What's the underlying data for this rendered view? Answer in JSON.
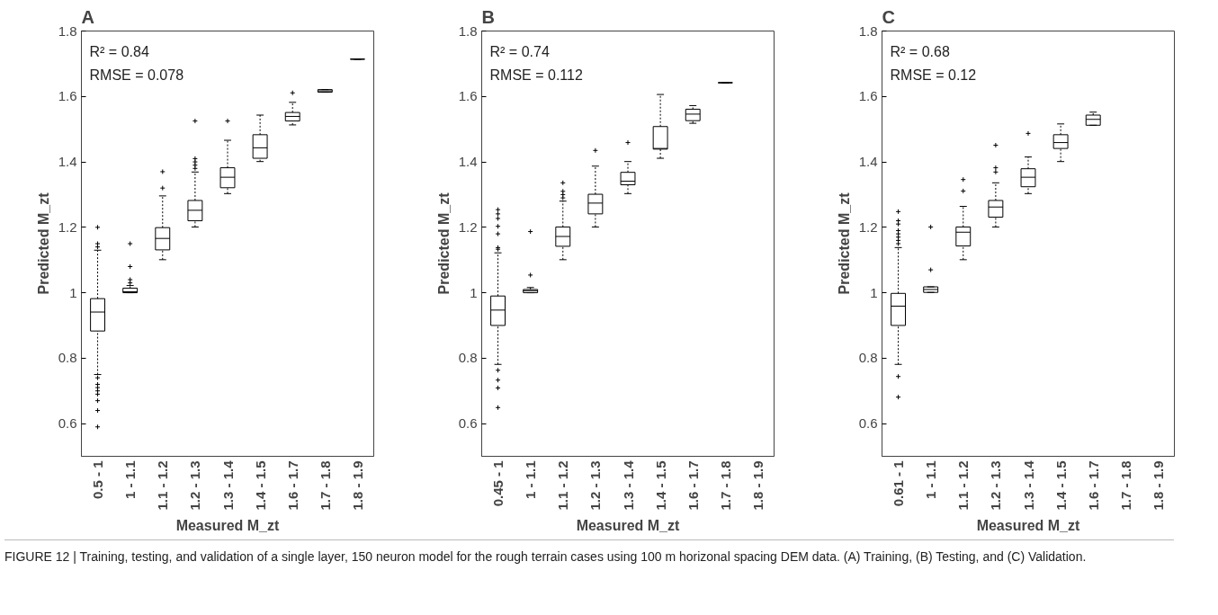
{
  "chart_data": [
    {
      "type": "box",
      "title": "A",
      "xlabel": "Measured M_zt",
      "ylabel": "Predicted M_zt",
      "ylim": [
        0.5,
        1.8
      ],
      "yticks": [
        0.6,
        0.8,
        1,
        1.2,
        1.4,
        1.6,
        1.8
      ],
      "categories": [
        "0.5 - 1",
        "1 - 1.1",
        "1.1 - 1.2",
        "1.2 - 1.3",
        "1.3 - 1.4",
        "1.4 - 1.5",
        "1.6 - 1.7",
        "1.7 - 1.8",
        "1.8 - 1.9"
      ],
      "boxes": [
        {
          "low": 0.75,
          "q1": 0.883,
          "median": 0.941,
          "q3": 0.982,
          "high": 1.13,
          "outliers": [
            0.59,
            0.64,
            0.67,
            0.69,
            0.7,
            0.71,
            0.72,
            0.74,
            1.14,
            1.15,
            1.2
          ]
        },
        {
          "low": 1.0,
          "q1": 1.0,
          "median": 1.003,
          "q3": 1.014,
          "high": 1.022,
          "outliers": [
            1.03,
            1.04,
            1.08,
            1.15
          ]
        },
        {
          "low": 1.101,
          "q1": 1.131,
          "median": 1.166,
          "q3": 1.199,
          "high": 1.296,
          "outliers": [
            1.32,
            1.37
          ]
        },
        {
          "low": 1.201,
          "q1": 1.22,
          "median": 1.252,
          "q3": 1.282,
          "high": 1.369,
          "outliers": [
            1.38,
            1.39,
            1.4,
            1.41,
            1.525
          ]
        },
        {
          "low": 1.303,
          "q1": 1.321,
          "median": 1.353,
          "q3": 1.382,
          "high": 1.466,
          "outliers": [
            1.525
          ]
        },
        {
          "low": 1.401,
          "q1": 1.411,
          "median": 1.443,
          "q3": 1.483,
          "high": 1.543
        },
        {
          "low": 1.513,
          "q1": 1.525,
          "median": 1.539,
          "q3": 1.551,
          "high": 1.582,
          "outliers": [
            1.611
          ]
        },
        {
          "low": 1.613,
          "q1": 1.613,
          "median": 1.617,
          "q3": 1.621,
          "high": 1.621
        },
        {
          "low": 1.714,
          "q1": 1.714,
          "median": 1.714,
          "q3": 1.714,
          "high": 1.714
        }
      ],
      "annotations": [
        "R² = 0.84",
        "RMSE = 0.078"
      ]
    },
    {
      "type": "box",
      "title": "B",
      "xlabel": "Measured M_zt",
      "ylabel": "Predicted M_zt",
      "ylim": [
        0.5,
        1.8
      ],
      "yticks": [
        0.6,
        0.8,
        1,
        1.2,
        1.4,
        1.6,
        1.8
      ],
      "categories": [
        "0.45 - 1",
        "1 - 1.1",
        "1.1 - 1.2",
        "1.2 - 1.3",
        "1.3 - 1.4",
        "1.4 - 1.5",
        "1.6 - 1.7",
        "1.7 - 1.8",
        "1.8 - 1.9"
      ],
      "boxes": [
        {
          "low": 0.781,
          "q1": 0.9,
          "median": 0.947,
          "q3": 0.99,
          "high": 1.122,
          "outliers": [
            0.649,
            0.709,
            0.733,
            0.763,
            1.133,
            1.138,
            1.18,
            1.203,
            1.227,
            1.241,
            1.254
          ]
        },
        {
          "low": 1.0,
          "q1": 1.0,
          "median": 1.006,
          "q3": 1.01,
          "high": 1.016,
          "outliers": [
            1.054,
            1.187
          ]
        },
        {
          "low": 1.101,
          "q1": 1.142,
          "median": 1.172,
          "q3": 1.201,
          "high": 1.28,
          "outliers": [
            1.29,
            1.3,
            1.31,
            1.336
          ]
        },
        {
          "low": 1.201,
          "q1": 1.241,
          "median": 1.274,
          "q3": 1.301,
          "high": 1.387,
          "outliers": [
            1.435
          ]
        },
        {
          "low": 1.303,
          "q1": 1.33,
          "median": 1.341,
          "q3": 1.368,
          "high": 1.401,
          "outliers": [
            1.459
          ]
        },
        {
          "low": 1.411,
          "q1": 1.439,
          "median": 1.441,
          "q3": 1.508,
          "high": 1.606
        },
        {
          "low": 1.518,
          "q1": 1.526,
          "median": 1.546,
          "q3": 1.561,
          "high": 1.572
        },
        {
          "low": 1.642,
          "q1": 1.642,
          "median": 1.642,
          "q3": 1.642,
          "high": 1.642
        },
        null
      ],
      "annotations": [
        "R² = 0.74",
        "RMSE = 0.112"
      ]
    },
    {
      "type": "box",
      "title": "C",
      "xlabel": "Measured M_zt",
      "ylabel": "Predicted M_zt",
      "ylim": [
        0.5,
        1.8
      ],
      "yticks": [
        0.6,
        0.8,
        1,
        1.2,
        1.4,
        1.6,
        1.8
      ],
      "categories": [
        "0.61 - 1",
        "1 - 1.1",
        "1.1 - 1.2",
        "1.2 - 1.3",
        "1.3 - 1.4",
        "1.4 - 1.5",
        "1.6 - 1.7",
        "1.7 - 1.8",
        "1.8 - 1.9"
      ],
      "boxes": [
        {
          "low": 0.781,
          "q1": 0.9,
          "median": 0.959,
          "q3": 0.998,
          "high": 1.138,
          "outliers": [
            0.681,
            0.744,
            1.15,
            1.16,
            1.17,
            1.18,
            1.19,
            1.21,
            1.22,
            1.248
          ]
        },
        {
          "low": 1.001,
          "q1": 1.001,
          "median": 1.01,
          "q3": 1.018,
          "high": 1.018,
          "outliers": [
            1.07,
            1.201
          ]
        },
        {
          "low": 1.101,
          "q1": 1.143,
          "median": 1.185,
          "q3": 1.201,
          "high": 1.264,
          "outliers": [
            1.311,
            1.346
          ]
        },
        {
          "low": 1.201,
          "q1": 1.231,
          "median": 1.262,
          "q3": 1.282,
          "high": 1.336,
          "outliers": [
            1.369,
            1.382,
            1.451
          ]
        },
        {
          "low": 1.303,
          "q1": 1.324,
          "median": 1.353,
          "q3": 1.379,
          "high": 1.415,
          "outliers": [
            1.487
          ]
        },
        {
          "low": 1.401,
          "q1": 1.441,
          "median": 1.459,
          "q3": 1.483,
          "high": 1.516
        },
        {
          "low": 1.512,
          "q1": 1.512,
          "median": 1.53,
          "q3": 1.543,
          "high": 1.552
        },
        null,
        null
      ],
      "annotations": [
        "R² = 0.68",
        "RMSE = 0.12",
        "FIGURE 12 | Training, testing, and validation of a single layer, 150 neuron model for the rough terrain cases using 100 m horizonal spacing DEM data. (A) Training, (B) Testing, and (C) Validation."
      ]
    }
  ]
}
